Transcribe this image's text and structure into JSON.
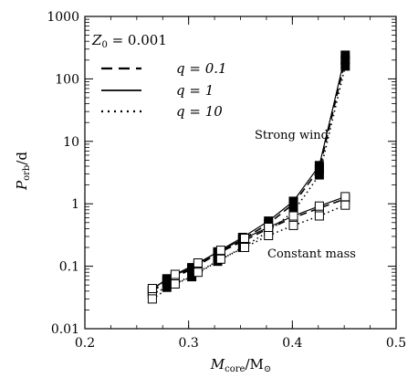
{
  "chart_data": {
    "type": "line",
    "xlabel": "Mcore/M⊙",
    "ylabel": "Porb/d",
    "xlim": [
      0.2,
      0.5
    ],
    "ylim": [
      0.01,
      1000
    ],
    "xscale": "linear",
    "yscale": "log",
    "x_ticks": [
      0.2,
      0.3,
      0.4,
      0.5
    ],
    "x_tick_labels": [
      "0.2",
      "0.3",
      "0.4",
      "0.5"
    ],
    "y_ticks": [
      0.01,
      0.1,
      1,
      10,
      100,
      1000
    ],
    "y_tick_labels": [
      "0.01",
      "0.1",
      "1",
      "10",
      "100",
      "1000"
    ],
    "grid": false,
    "legend_position": "top-left",
    "annotation_z0": "Z0 = 0.001",
    "annotations": [
      "Strong wind",
      "Constant mass"
    ],
    "legend": [
      {
        "label": "q = 0.1",
        "style": "dashed"
      },
      {
        "label": "q = 1",
        "style": "solid"
      },
      {
        "label": "q = 10",
        "style": "dotted"
      }
    ],
    "series": [
      {
        "group": "strong-wind",
        "q": "0.1",
        "style": "dashed",
        "marker": "filled-square",
        "x": [
          0.265,
          0.279,
          0.303,
          0.328,
          0.352,
          0.377,
          0.401,
          0.426,
          0.451
        ],
        "y": [
          0.04,
          0.058,
          0.09,
          0.16,
          0.27,
          0.48,
          1.0,
          3.6,
          200
        ]
      },
      {
        "group": "strong-wind",
        "q": "1",
        "style": "solid",
        "marker": "filled-square",
        "x": [
          0.265,
          0.279,
          0.303,
          0.328,
          0.352,
          0.377,
          0.401,
          0.426,
          0.451
        ],
        "y": [
          0.042,
          0.063,
          0.095,
          0.17,
          0.29,
          0.53,
          1.1,
          4.1,
          240
        ]
      },
      {
        "group": "strong-wind",
        "q": "10",
        "style": "dotted",
        "marker": "filled-square",
        "x": [
          0.265,
          0.279,
          0.303,
          0.328,
          0.352,
          0.377,
          0.401,
          0.426,
          0.451
        ],
        "y": [
          0.036,
          0.046,
          0.068,
          0.12,
          0.2,
          0.36,
          0.75,
          2.9,
          160
        ]
      },
      {
        "group": "constant-mass",
        "q": "0.1",
        "style": "dashed",
        "marker": "open-square",
        "x": [
          0.265,
          0.287,
          0.309,
          0.331,
          0.354,
          0.377,
          0.401,
          0.426,
          0.451
        ],
        "y": [
          0.04,
          0.068,
          0.105,
          0.17,
          0.26,
          0.4,
          0.6,
          0.85,
          1.2
        ]
      },
      {
        "group": "constant-mass",
        "q": "1",
        "style": "solid",
        "marker": "open-square",
        "x": [
          0.265,
          0.287,
          0.309,
          0.331,
          0.354,
          0.377,
          0.401,
          0.426,
          0.451
        ],
        "y": [
          0.044,
          0.074,
          0.113,
          0.18,
          0.28,
          0.42,
          0.64,
          0.92,
          1.3
        ]
      },
      {
        "group": "constant-mass",
        "q": "10",
        "style": "dotted",
        "marker": "open-square",
        "x": [
          0.265,
          0.287,
          0.309,
          0.331,
          0.354,
          0.377,
          0.401,
          0.426,
          0.451
        ],
        "y": [
          0.03,
          0.052,
          0.08,
          0.13,
          0.2,
          0.31,
          0.45,
          0.64,
          0.95
        ]
      }
    ]
  }
}
